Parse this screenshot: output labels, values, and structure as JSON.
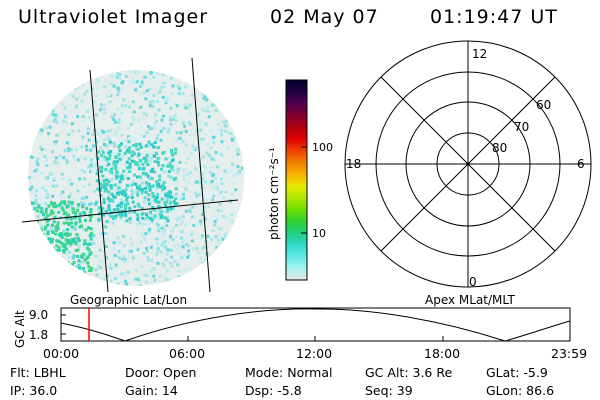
{
  "header": {
    "instrument": "Ultraviolet Imager",
    "date": "02 May 07",
    "time": "01:19:47 UT"
  },
  "colorbar": {
    "label": "photon cm⁻²s⁻¹",
    "ticks": [
      "100",
      "10"
    ],
    "colors": [
      "#000030",
      "#200040",
      "#500050",
      "#800030",
      "#b00010",
      "#e00000",
      "#f04000",
      "#f08000",
      "#f8b000",
      "#e8e800",
      "#b0e800",
      "#70e000",
      "#30d030",
      "#20d080",
      "#30d8c8",
      "#60e8e8",
      "#a8f0f0",
      "#e0e8e8"
    ]
  },
  "polar_plot": {
    "mlt_labels": [
      "12",
      "18",
      "6",
      "0"
    ],
    "lat_labels": [
      "60",
      "70",
      "80"
    ]
  },
  "timeline": {
    "left_title": "Geographic Lat/Lon",
    "right_title": "Apex MLat/MLT",
    "axis_title": "GC Alt",
    "y_ticks": [
      "9.0",
      "1.8"
    ],
    "x_ticks": [
      "00:00",
      "06:00",
      "12:00",
      "18:00",
      "23:59"
    ],
    "marker_color": "#ff0000"
  },
  "status": {
    "flt": "Flt: LBHL",
    "door": "Door: Open",
    "mode": "Mode: Normal",
    "gc_alt": "GC Alt: 3.6 Re",
    "glat": "GLat:  -5.9",
    "ip": "IP: 36.0",
    "gain": "Gain: 14",
    "dsp": "Dsp:   -5.8",
    "seq": "Seq: 39",
    "glon": "GLon:  86.6"
  }
}
